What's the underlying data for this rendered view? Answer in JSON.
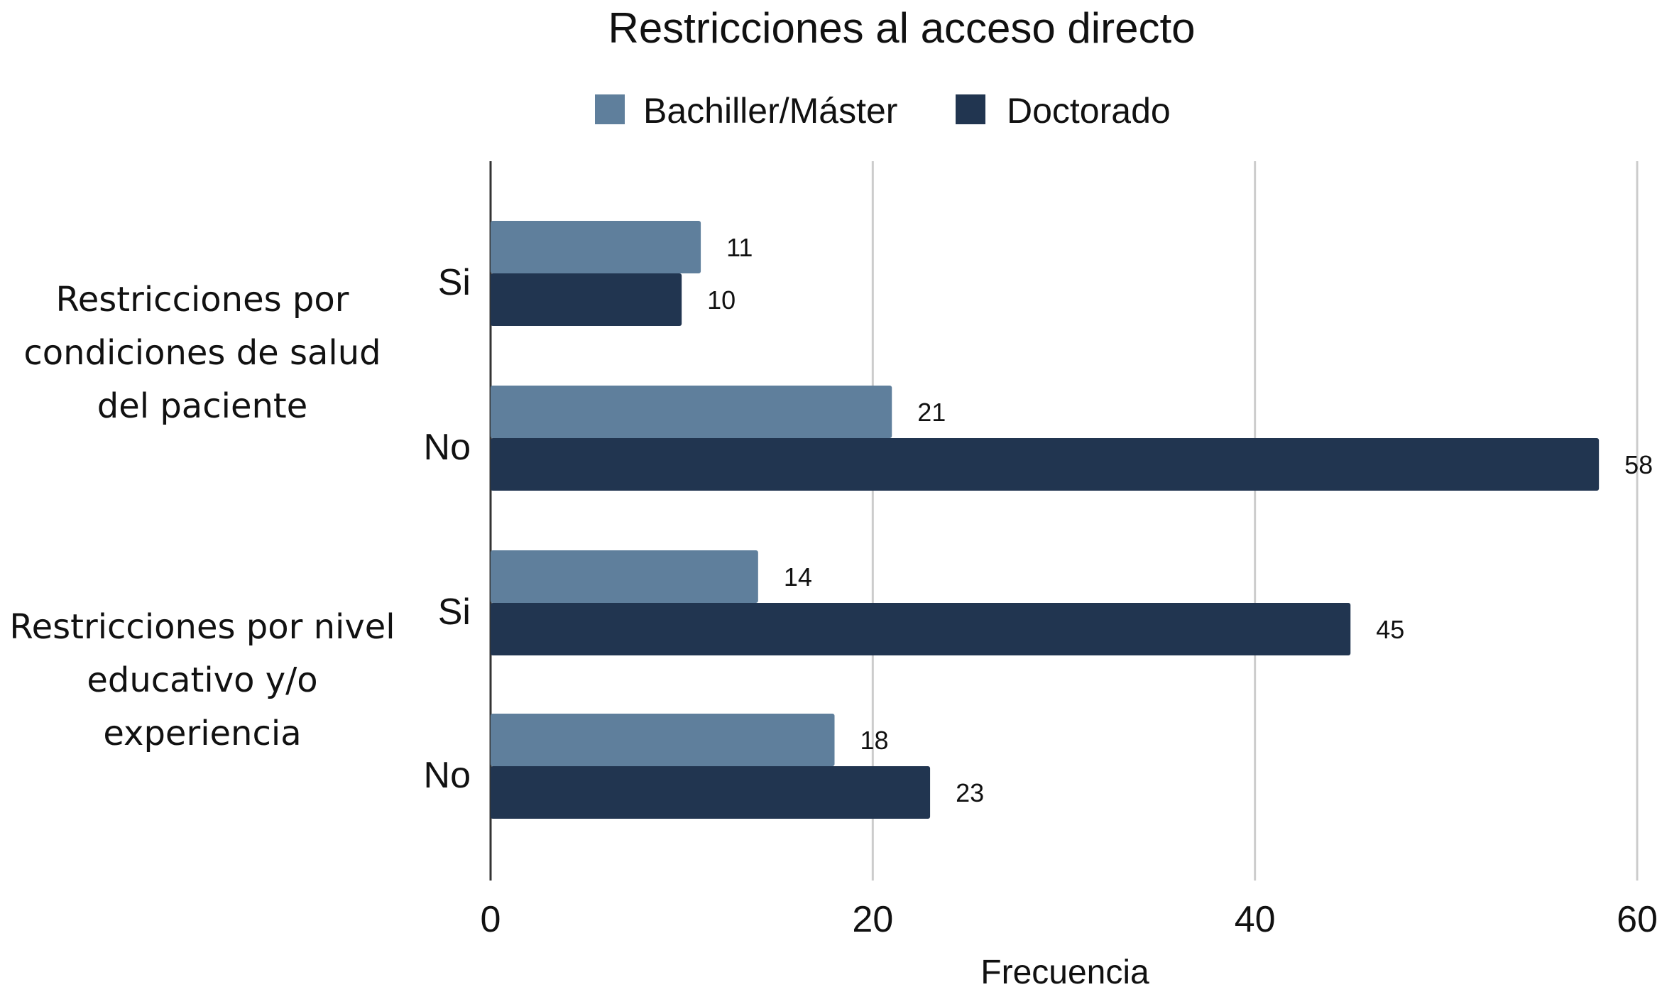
{
  "chart_data": {
    "type": "bar",
    "orientation": "horizontal",
    "title": "Restricciones al acceso directo",
    "xlabel": "Frecuencia",
    "ylabel": "",
    "xlim": [
      0,
      60
    ],
    "x_ticks": [
      "0",
      "20",
      "40",
      "60"
    ],
    "grid": true,
    "legend_position": "top-center",
    "groups": [
      {
        "label_lines": [
          "Restricciones por",
          "condiciones de salud",
          "del paciente"
        ],
        "categories": [
          "Si",
          "No"
        ]
      },
      {
        "label_lines": [
          "Restricciones por nivel",
          "educativo y/o",
          "experiencia"
        ],
        "categories": [
          "Si",
          "No"
        ]
      }
    ],
    "categories": [
      "Si",
      "No",
      "Si",
      "No"
    ],
    "series": [
      {
        "name": "Bachiller/Máster",
        "color": "#5f7f9c",
        "values": [
          11,
          21,
          14,
          18
        ]
      },
      {
        "name": "Doctorado",
        "color": "#213550",
        "values": [
          10,
          58,
          45,
          23
        ]
      }
    ]
  }
}
